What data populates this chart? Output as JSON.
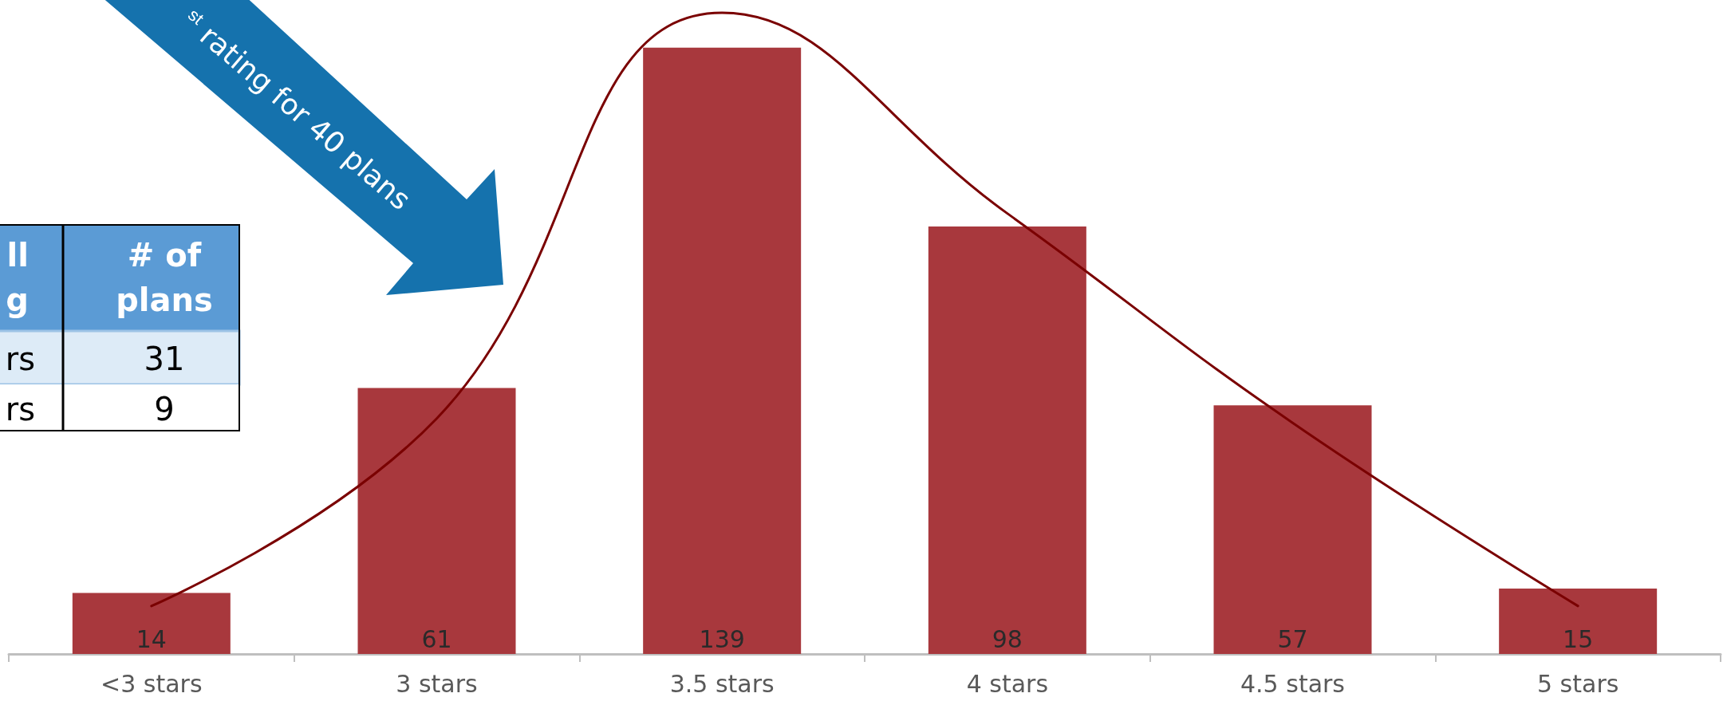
{
  "chart_data": {
    "type": "bar",
    "categories": [
      "<3 stars",
      "3 stars",
      "3.5 stars",
      "4 stars",
      "4.5 stars",
      "5 stars"
    ],
    "series": [
      {
        "color": "#a8383d",
        "values": [
          14,
          61,
          139,
          98,
          57,
          15
        ],
        "value_labels": [
          "14",
          "61",
          "139",
          "98",
          "57",
          "15"
        ]
      },
      {
        "type": "line",
        "color": "#7a0000",
        "values": [
          11,
          54,
          147,
          101,
          53,
          11
        ]
      }
    ],
    "marker": "none",
    "line_style": "solid",
    "annotations": [
      "$^{st}$ rating for 40 plans",
      "ll\ng",
      "# of\nplans",
      "rs",
      "31",
      "rs",
      "9"
    ]
  }
}
